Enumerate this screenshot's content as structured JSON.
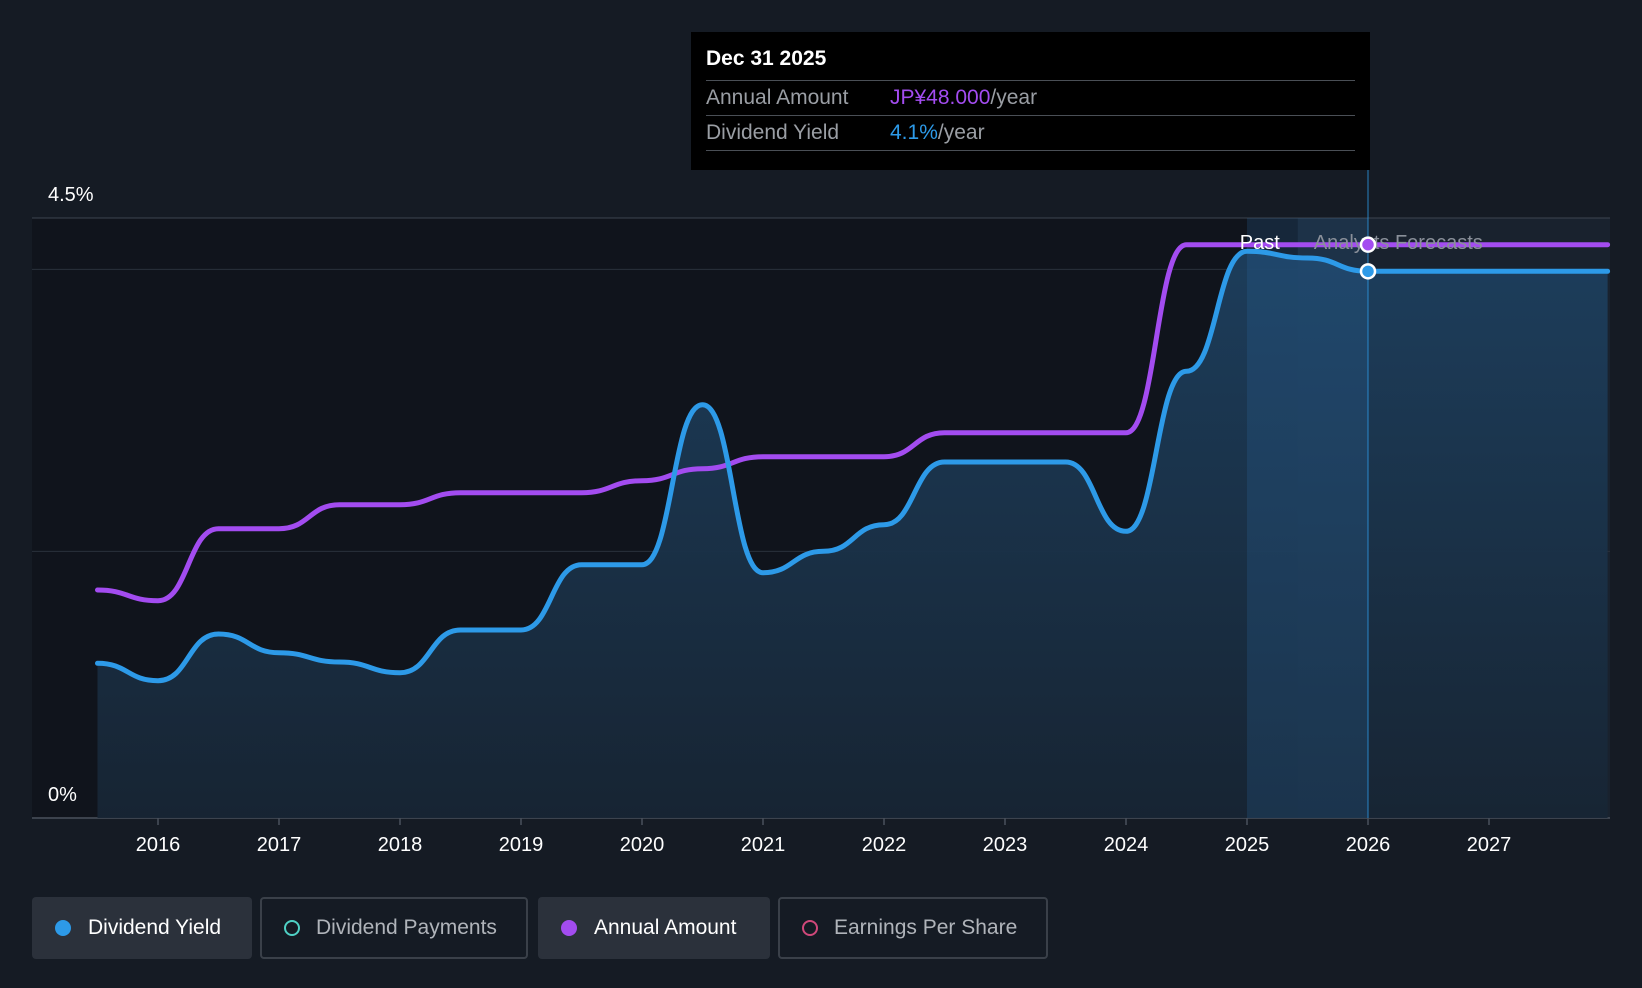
{
  "tooltip": {
    "date": "Dec 31 2025",
    "rows": [
      {
        "label": "Annual Amount",
        "value": "JP¥48.000",
        "unit": "/year",
        "color": "#a34cf0"
      },
      {
        "label": "Dividend Yield",
        "value": "4.1%",
        "unit": "/year",
        "color": "#2d9ae8"
      }
    ]
  },
  "legend": [
    {
      "label": "Dividend Yield",
      "color": "#2d9ae8",
      "active": true,
      "filled": true
    },
    {
      "label": "Dividend Payments",
      "color": "#4fd1c5",
      "active": false,
      "filled": false
    },
    {
      "label": "Annual Amount",
      "color": "#a34cf0",
      "active": true,
      "filled": true
    },
    {
      "label": "Earnings Per Share",
      "color": "#d0487a",
      "active": false,
      "filled": false
    }
  ],
  "chart_data": {
    "type": "line",
    "y_ticks": [
      "4.5%",
      "0%"
    ],
    "ylim": [
      0,
      4.5
    ],
    "x_ticks": [
      "2016",
      "2017",
      "2018",
      "2019",
      "2020",
      "2021",
      "2022",
      "2023",
      "2024",
      "2025",
      "2026",
      "2027"
    ],
    "xlim": [
      2015.47,
      2027.98
    ],
    "regions": {
      "past_label": "Past",
      "forecast_label": "Analysts Forecasts",
      "forecast_start": 2025.42,
      "cursor": 2026.0
    },
    "series": [
      {
        "name": "Dividend Yield",
        "color": "#2d9ae8",
        "axis": "percent",
        "points": [
          [
            2015.5,
            1.16
          ],
          [
            2016.0,
            1.03
          ],
          [
            2016.5,
            1.38
          ],
          [
            2017.0,
            1.24
          ],
          [
            2017.5,
            1.17
          ],
          [
            2018.0,
            1.09
          ],
          [
            2018.5,
            1.41
          ],
          [
            2019.0,
            1.41
          ],
          [
            2019.5,
            1.9
          ],
          [
            2020.0,
            1.9
          ],
          [
            2020.5,
            3.1
          ],
          [
            2021.0,
            1.84
          ],
          [
            2021.5,
            2.0
          ],
          [
            2022.0,
            2.2
          ],
          [
            2022.5,
            2.67
          ],
          [
            2023.0,
            2.67
          ],
          [
            2023.5,
            2.67
          ],
          [
            2024.0,
            2.15
          ],
          [
            2024.5,
            3.35
          ],
          [
            2025.0,
            4.25
          ],
          [
            2025.5,
            4.2
          ],
          [
            2026.0,
            4.1
          ],
          [
            2027.98,
            4.1
          ]
        ]
      },
      {
        "name": "Annual Amount",
        "color": "#a34cf0",
        "axis": "amount",
        "points": [
          [
            2015.5,
            1.71
          ],
          [
            2016.0,
            1.63
          ],
          [
            2016.5,
            2.17
          ],
          [
            2017.0,
            2.17
          ],
          [
            2017.5,
            2.35
          ],
          [
            2018.0,
            2.35
          ],
          [
            2018.5,
            2.44
          ],
          [
            2019.0,
            2.44
          ],
          [
            2019.5,
            2.44
          ],
          [
            2020.0,
            2.53
          ],
          [
            2020.5,
            2.62
          ],
          [
            2021.0,
            2.71
          ],
          [
            2021.5,
            2.71
          ],
          [
            2022.0,
            2.71
          ],
          [
            2022.5,
            2.89
          ],
          [
            2023.0,
            2.89
          ],
          [
            2023.5,
            2.89
          ],
          [
            2024.0,
            2.89
          ],
          [
            2024.5,
            4.3
          ],
          [
            2025.0,
            4.3
          ],
          [
            2025.5,
            4.3
          ],
          [
            2026.0,
            4.3
          ],
          [
            2027.98,
            4.3
          ]
        ]
      }
    ]
  }
}
